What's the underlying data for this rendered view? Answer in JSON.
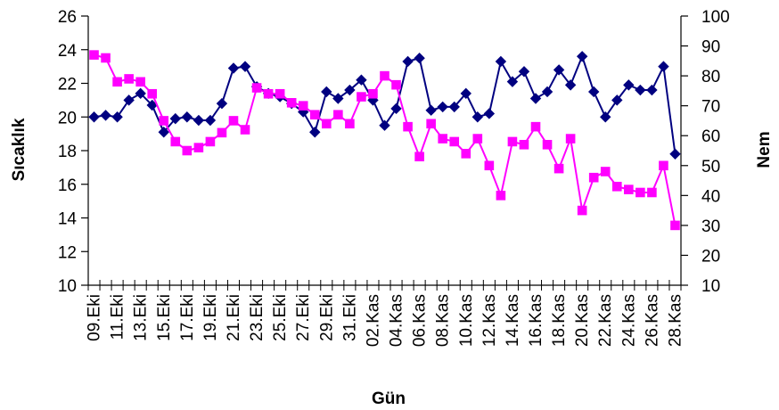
{
  "chart_data": {
    "type": "line",
    "xlabel": "Gün",
    "ylabel": "Sıcaklık",
    "y2label": "Nem",
    "ylim": [
      10,
      26
    ],
    "y2lim": [
      10,
      100
    ],
    "ymajor": 2,
    "y2major": 10,
    "grid": false,
    "legend": "none",
    "categories": [
      "09.Eki",
      "10.Eki",
      "11.Eki",
      "12.Eki",
      "13.Eki",
      "14.Eki",
      "15.Eki",
      "16.Eki",
      "17.Eki",
      "18.Eki",
      "19.Eki",
      "20.Eki",
      "21.Eki",
      "22.Eki",
      "23.Eki",
      "24.Eki",
      "25.Eki",
      "26.Eki",
      "27.Eki",
      "28.Eki",
      "29.Eki",
      "30.Eki",
      "31.Eki",
      "01.Kas",
      "02.Kas",
      "03.Kas",
      "04.Kas",
      "05.Kas",
      "06.Kas",
      "07.Kas",
      "08.Kas",
      "09.Kas",
      "10.Kas",
      "11.Kas",
      "12.Kas",
      "13.Kas",
      "14.Kas",
      "15.Kas",
      "16.Kas",
      "17.Kas",
      "18.Kas",
      "19.Kas",
      "20.Kas",
      "21.Kas",
      "22.Kas",
      "23.Kas",
      "24.Kas",
      "25.Kas",
      "26.Kas",
      "27.Kas",
      "28.Kas"
    ],
    "tick_labels": [
      "09.Eki",
      "11.Eki",
      "13.Eki",
      "15.Eki",
      "17.Eki",
      "19.Eki",
      "21.Eki",
      "23.Eki",
      "25.Eki",
      "27.Eki",
      "29.Eki",
      "31.Eki",
      "02.Kas",
      "04.Kas",
      "06.Kas",
      "08.Kas",
      "10.Kas",
      "12.Kas",
      "14.Kas",
      "16.Kas",
      "18.Kas",
      "20.Kas",
      "22.Kas",
      "24.Kas",
      "26.Kas",
      "28.Kas"
    ],
    "series": [
      {
        "axis": "left",
        "color": "#000080",
        "marker": "diamond",
        "values": [
          20.0,
          20.1,
          20.0,
          21.0,
          21.4,
          20.7,
          19.1,
          19.9,
          20.0,
          19.8,
          19.8,
          20.8,
          22.9,
          23.0,
          21.8,
          21.4,
          21.2,
          20.8,
          20.3,
          19.1,
          21.5,
          21.1,
          21.6,
          22.2,
          21.0,
          19.5,
          20.5,
          23.3,
          23.5,
          20.4,
          20.6,
          20.6,
          21.4,
          20.0,
          20.2,
          23.3,
          22.1,
          22.7,
          21.1,
          21.5,
          22.8,
          21.9,
          23.6,
          21.5,
          20.0,
          21.0,
          21.9,
          21.6,
          21.6,
          23.0,
          17.8
        ]
      },
      {
        "axis": "right",
        "color": "#ff00ff",
        "marker": "square",
        "values": [
          87,
          86,
          78,
          79,
          78,
          74,
          65,
          58,
          55,
          56,
          58,
          61,
          65,
          62,
          76,
          74,
          74,
          71,
          70,
          67,
          64,
          67,
          64,
          73,
          74,
          80,
          77,
          63,
          53,
          64,
          59,
          58,
          54,
          59,
          50,
          40,
          58,
          57,
          63,
          57,
          49,
          59,
          35,
          46,
          48,
          43,
          42,
          41,
          41,
          50,
          30
        ]
      }
    ]
  }
}
